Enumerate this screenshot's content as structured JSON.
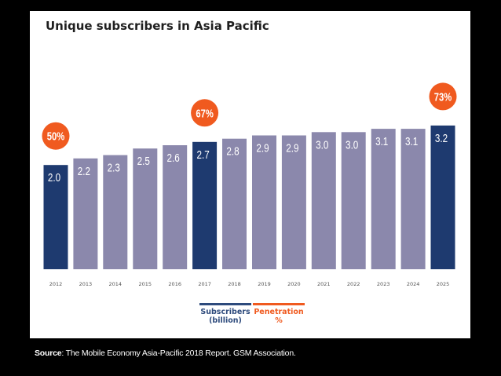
{
  "title": "Unique subscribers in Asia Pacific",
  "source_label": "Source",
  "source_text": ": The Mobile Economy Asia-Pacific 2018 Report. GSM Association.",
  "colors": {
    "highlight_bar": "#1e3a6f",
    "regular_bar": "#8b88ac",
    "penetration": "#f05a1f",
    "legend_subscribers": "#2d4a7c"
  },
  "legend": {
    "subscribers_line1": "Subscribers",
    "subscribers_line2": "(billion)",
    "penetration_line1": "Penetration",
    "penetration_line2": "%"
  },
  "chart_data": {
    "type": "bar",
    "title": "Unique subscribers in Asia Pacific",
    "categories": [
      "2012",
      "2013",
      "2014",
      "2015",
      "2016",
      "2017",
      "2018",
      "2019",
      "2020",
      "2021",
      "2022",
      "2023",
      "2024",
      "2025"
    ],
    "series": [
      {
        "name": "Subscribers (billion)",
        "values": [
          2.0,
          2.2,
          2.3,
          2.5,
          2.6,
          2.7,
          2.8,
          2.9,
          2.9,
          3.0,
          3.0,
          3.1,
          3.1,
          3.2
        ],
        "labels": [
          "2.0",
          "2.2",
          "2.3",
          "2.5",
          "2.6",
          "2.7",
          "2.8",
          "2.9",
          "2.9",
          "3.0",
          "3.0",
          "3.1",
          "3.1",
          "3.2"
        ]
      }
    ],
    "highlighted_years": [
      "2012",
      "2017",
      "2025"
    ],
    "penetration_annotations": [
      {
        "year": "2012",
        "label": "50%"
      },
      {
        "year": "2017",
        "label": "67%"
      },
      {
        "year": "2025",
        "label": "73%"
      }
    ],
    "ylim": [
      0,
      3.2
    ],
    "grid": false,
    "legend_position": "bottom"
  }
}
